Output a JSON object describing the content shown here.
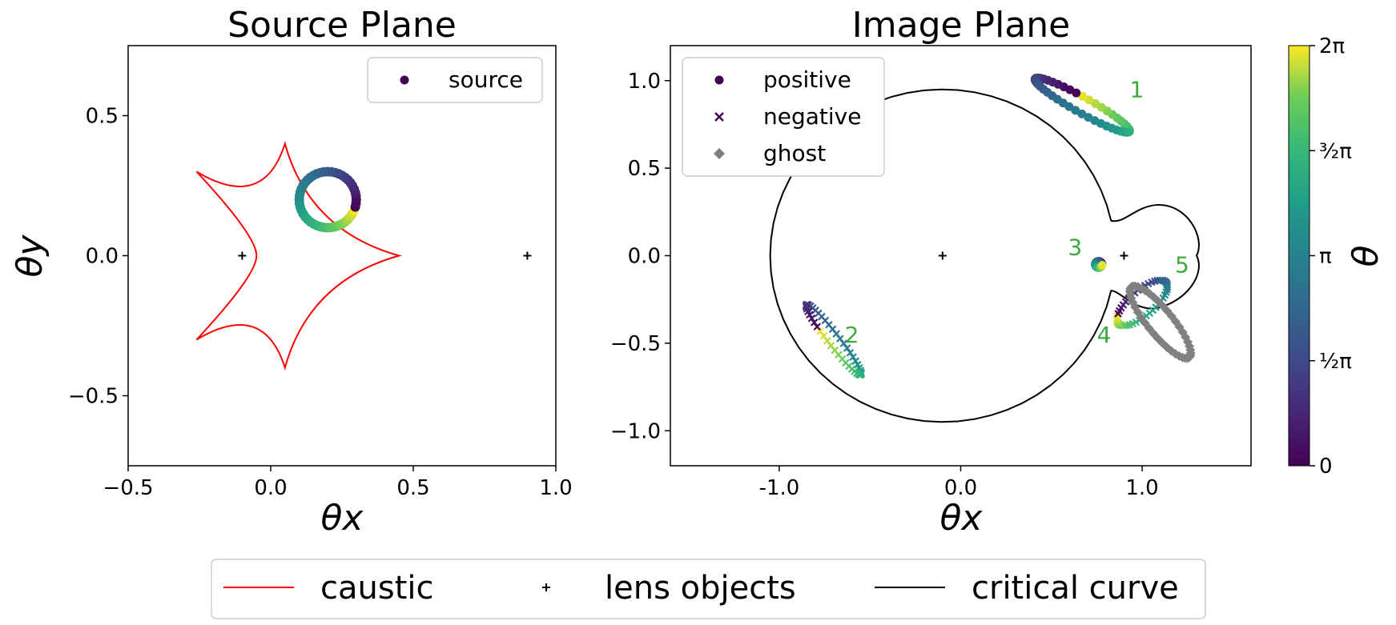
{
  "colors": {
    "caustic": "#ff0000",
    "critical": "#000000",
    "ghost": "#808080",
    "label": "#3daa3d",
    "colormap": "viridis"
  },
  "icons": {
    "lens_marker": "plus-marker",
    "positive_marker": "dot-marker",
    "negative_marker": "x-marker",
    "ghost_marker": "diamond-marker"
  },
  "chart_data": [
    {
      "type": "scatter",
      "title": "Source Plane",
      "xlabel": "θx",
      "ylabel": "θy",
      "xlim": [
        -0.5,
        1.0
      ],
      "ylim": [
        -0.75,
        0.75
      ],
      "xticks": [
        -0.5,
        0.0,
        0.5,
        1.0
      ],
      "xtick_labels": [
        "−0.5",
        "0.0",
        "0.5",
        "1.0"
      ],
      "yticks": [
        -0.5,
        0.0,
        0.5
      ],
      "ytick_labels": [
        "−0.5",
        "0.0",
        "0.5"
      ],
      "legend": {
        "position": "top-right",
        "entries": [
          "source"
        ]
      },
      "caustic_vertices": [
        [
          0.05,
          0.4
        ],
        [
          -0.26,
          0.3
        ],
        [
          -0.05,
          0.0
        ],
        [
          -0.26,
          -0.3
        ],
        [
          0.05,
          -0.4
        ],
        [
          0.45,
          0.0
        ]
      ],
      "lens_objects": [
        [
          -0.1,
          0.0
        ],
        [
          0.9,
          0.0
        ]
      ],
      "source_circle": {
        "center": [
          0.2,
          0.2
        ],
        "radius": 0.1,
        "n_points": 48
      },
      "color_scale": "theta"
    },
    {
      "type": "scatter",
      "title": "Image Plane",
      "xlabel": "θx",
      "xlim": [
        -1.6,
        1.6
      ],
      "ylim": [
        -1.2,
        1.2
      ],
      "xticks": [
        -1.0,
        0.0,
        1.0
      ],
      "xtick_labels": [
        "-1.0",
        "0.0",
        "1.0"
      ],
      "yticks": [
        -1.0,
        -0.5,
        0.0,
        0.5,
        1.0
      ],
      "ytick_labels": [
        "−1.0",
        "−0.5",
        "0.0",
        "0.5",
        "1.0"
      ],
      "legend": {
        "position": "top-left",
        "entries": [
          "positive",
          "negative",
          "ghost"
        ]
      },
      "lens_objects": [
        [
          -0.1,
          0.0
        ],
        [
          0.9,
          0.0
        ]
      ],
      "image_labels": [
        {
          "text": "1",
          "x": 0.97,
          "y": 0.95
        },
        {
          "text": "2",
          "x": -0.6,
          "y": -0.45
        },
        {
          "text": "3",
          "x": 0.63,
          "y": 0.05
        },
        {
          "text": "4",
          "x": 0.79,
          "y": -0.45
        },
        {
          "text": "5",
          "x": 1.22,
          "y": -0.05
        }
      ],
      "image_tracks": [
        {
          "label": "1",
          "parity": "positive",
          "cx": 0.67,
          "cy": 0.86,
          "ax": 0.26,
          "ay": -0.15,
          "bx": 0.02,
          "by": 0.04,
          "t0": 0.72
        },
        {
          "label": "2",
          "parity": "negative",
          "cx": -0.7,
          "cy": -0.48,
          "ax": -0.15,
          "ay": 0.2,
          "bx": 0.025,
          "by": 0.02,
          "t0": 0.18
        },
        {
          "label": "3",
          "parity": "positive",
          "cx": 0.76,
          "cy": -0.05,
          "ax": 0.02,
          "ay": 0.0,
          "bx": 0.0,
          "by": 0.02,
          "t0": 0.0
        },
        {
          "label": "4/5",
          "parity": "negative",
          "cx": 1.0,
          "cy": -0.27,
          "ax": 0.13,
          "ay": 0.12,
          "bx": 0.05,
          "by": -0.05,
          "t0": 0.4
        },
        {
          "label": "ghost",
          "parity": "ghost",
          "cx": 1.1,
          "cy": -0.38,
          "ax": 0.16,
          "ay": -0.2,
          "bx": -0.05,
          "by": -0.05,
          "t0": 0.0
        }
      ]
    },
    {
      "type": "colorbar",
      "label": "θ",
      "range": [
        0,
        6.283185307
      ],
      "ticks": [
        {
          "value": 0,
          "label": "0"
        },
        {
          "value": 1.5707963,
          "label": "½π"
        },
        {
          "value": 3.1415927,
          "label": "π"
        },
        {
          "value": 4.712389,
          "label": "³⁄₂π"
        },
        {
          "value": 6.2831853,
          "label": "2π"
        }
      ]
    }
  ],
  "figure_legend": {
    "entries": [
      "caustic",
      "lens objects",
      "critical curve"
    ]
  }
}
